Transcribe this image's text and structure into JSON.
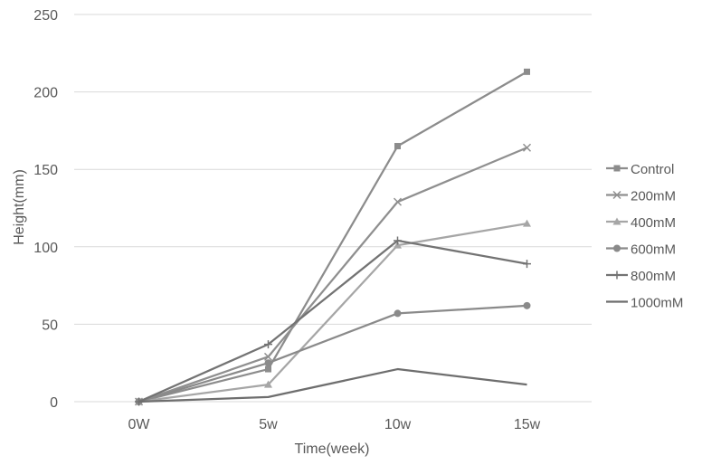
{
  "chart_data": {
    "type": "line",
    "title": "",
    "xlabel": "Time(week)",
    "ylabel": "Height(mm)",
    "categories": [
      "0W",
      "5w",
      "10w",
      "15w"
    ],
    "ylim": [
      0,
      250
    ],
    "yticks": [
      0,
      50,
      100,
      150,
      200,
      250
    ],
    "grid": true,
    "legend_position": "right",
    "series": [
      {
        "name": "Control",
        "values": [
          0,
          21,
          165,
          213
        ],
        "color": "#8c8c8c",
        "marker": "square"
      },
      {
        "name": "200mM",
        "values": [
          0,
          29,
          129,
          164
        ],
        "color": "#8f8f8f",
        "marker": "x"
      },
      {
        "name": "400mM",
        "values": [
          0,
          11,
          101,
          115
        ],
        "color": "#a6a6a6",
        "marker": "triangle"
      },
      {
        "name": "600mM",
        "values": [
          0,
          25,
          57,
          62
        ],
        "color": "#8a8a8a",
        "marker": "circle"
      },
      {
        "name": "800mM",
        "values": [
          0,
          37,
          104,
          89
        ],
        "color": "#737373",
        "marker": "plus"
      },
      {
        "name": "1000mM",
        "values": [
          0,
          3,
          21,
          11
        ],
        "color": "#6e6e6e",
        "marker": "none"
      }
    ]
  }
}
